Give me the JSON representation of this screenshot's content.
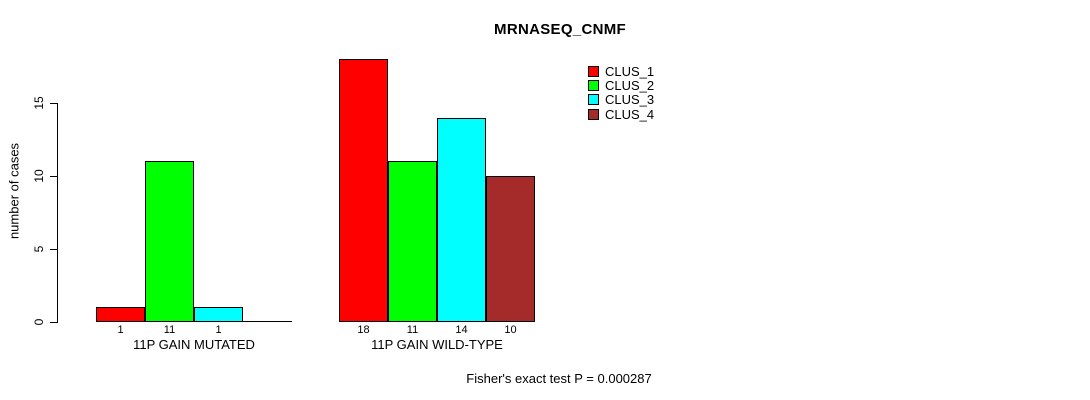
{
  "chart_data": {
    "type": "bar",
    "title": "MRNASEQ_CNMF",
    "ylabel": "number of cases",
    "xlabel": "",
    "ylim": [
      0,
      18
    ],
    "yticks": [
      0,
      5,
      10,
      15
    ],
    "grid": false,
    "legend_position": "top-right",
    "legend": [
      {
        "name": "CLUS_1",
        "color": "#FF0000"
      },
      {
        "name": "CLUS_2",
        "color": "#00FF00"
      },
      {
        "name": "CLUS_3",
        "color": "#00FFFF"
      },
      {
        "name": "CLUS_4",
        "color": "#A52A2A"
      }
    ],
    "categories": [
      "11P GAIN MUTATED",
      "11P GAIN WILD-TYPE"
    ],
    "series": [
      {
        "name": "CLUS_1",
        "values": [
          1,
          18
        ]
      },
      {
        "name": "CLUS_2",
        "values": [
          11,
          11
        ]
      },
      {
        "name": "CLUS_3",
        "values": [
          1,
          14
        ]
      },
      {
        "name": "CLUS_4",
        "values": [
          0,
          10
        ]
      }
    ],
    "groups": [
      {
        "label": "11P GAIN MUTATED",
        "values": [
          1,
          11,
          1,
          0
        ],
        "bar_labels": [
          "1",
          "11",
          "1",
          ""
        ]
      },
      {
        "label": "11P GAIN WILD-TYPE",
        "values": [
          18,
          11,
          14,
          10
        ],
        "bar_labels": [
          "18",
          "11",
          "14",
          "10"
        ]
      }
    ],
    "annotation": "Fisher's exact test P = 0.000287"
  }
}
